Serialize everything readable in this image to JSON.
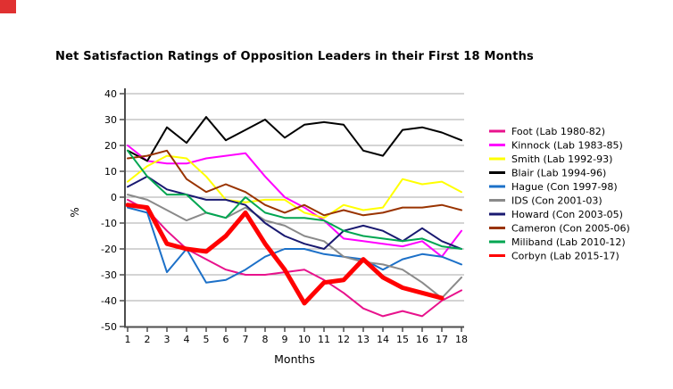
{
  "window": {
    "corner_mark_color": "#e03131"
  },
  "chart_data": {
    "type": "line",
    "title": "Net Satisfaction Ratings of Opposition Leaders in their First 18 Months",
    "xlabel": "Months",
    "ylabel": "%",
    "x": [
      1,
      2,
      3,
      4,
      5,
      6,
      7,
      8,
      9,
      10,
      11,
      12,
      13,
      14,
      15,
      16,
      17,
      18
    ],
    "ylim": [
      -50,
      40
    ],
    "y_ticks": [
      40,
      30,
      20,
      10,
      0,
      -10,
      -20,
      -30,
      -40,
      -50
    ],
    "grid": true,
    "legend_position": "right",
    "series": [
      {
        "name": "Foot (Lab 1980-82)",
        "color": "#e8128c",
        "line_width": 2,
        "values": [
          -1,
          -5,
          -13,
          -20,
          -24,
          -28,
          -30,
          -30,
          -29,
          -28,
          -32,
          -37,
          -43,
          -46,
          -44,
          -46,
          -40,
          -36
        ]
      },
      {
        "name": "Kinnock (Lab 1983-85)",
        "color": "#ff00ff",
        "line_width": 2,
        "values": [
          20,
          14,
          13,
          13,
          15,
          16,
          17,
          8,
          0,
          -4,
          -9,
          -16,
          -17,
          -18,
          -19,
          -17,
          -23,
          -13
        ]
      },
      {
        "name": "Smith (Lab 1992-93)",
        "color": "#ffff00",
        "line_width": 2,
        "values": [
          6,
          12,
          16,
          15,
          8,
          -1,
          -2,
          -1,
          -1,
          -6,
          -8,
          -3,
          -5,
          -4,
          7,
          5,
          6,
          2
        ]
      },
      {
        "name": "Blair (Lab 1994-96)",
        "color": "#000000",
        "line_width": 2,
        "values": [
          18,
          14,
          27,
          21,
          31,
          22,
          26,
          30,
          23,
          28,
          29,
          28,
          18,
          16,
          26,
          27,
          25,
          22
        ]
      },
      {
        "name": "Hague (Con 1997-98)",
        "color": "#1c70c8",
        "line_width": 2,
        "values": [
          -4,
          -6,
          -29,
          -20,
          -33,
          -32,
          -28,
          -23,
          -20,
          -20,
          -22,
          -23,
          -24,
          -28,
          -24,
          -22,
          -23,
          -26
        ]
      },
      {
        "name": "IDS (Con 2001-03)",
        "color": "#8a8a8a",
        "line_width": 2,
        "values": [
          1,
          -1,
          -5,
          -9,
          -6,
          -8,
          -4,
          -9,
          -11,
          -15,
          -17,
          -23,
          -25,
          -26,
          -28,
          -33,
          -39,
          -31
        ]
      },
      {
        "name": "Howard (Con 2003-05)",
        "color": "#191970",
        "line_width": 2,
        "values": [
          4,
          8,
          3,
          1,
          -1,
          -1,
          -3,
          -10,
          -15,
          -18,
          -20,
          -13,
          -11,
          -13,
          -17,
          -12,
          -17,
          -20
        ]
      },
      {
        "name": "Cameron (Con 2005-06)",
        "color": "#993300",
        "line_width": 2,
        "values": [
          15,
          16,
          18,
          7,
          2,
          5,
          2,
          -3,
          -6,
          -3,
          -7,
          -5,
          -7,
          -6,
          -4,
          -4,
          -3,
          -5
        ]
      },
      {
        "name": "Miliband (Lab 2010-12)",
        "color": "#00a651",
        "line_width": 2,
        "values": [
          18,
          8,
          1,
          1,
          -6,
          -8,
          0,
          -6,
          -8,
          -8,
          -9,
          -13,
          -15,
          -16,
          -17,
          -16,
          -19,
          -20
        ]
      },
      {
        "name": "Corbyn (Lab 2015-17)",
        "color": "#ff0000",
        "line_width": 5,
        "values": [
          -3,
          -4,
          -18,
          -20,
          -21,
          -15,
          -6,
          -18,
          -28,
          -41,
          -33,
          -32,
          -24,
          -31,
          -35,
          -37,
          -39,
          null
        ]
      }
    ]
  },
  "style": {
    "grid_color": "#a8a8a8",
    "axis_color": "#4d4d4d",
    "tick_label_color": "#000000",
    "legend_text_color": "#000000"
  }
}
